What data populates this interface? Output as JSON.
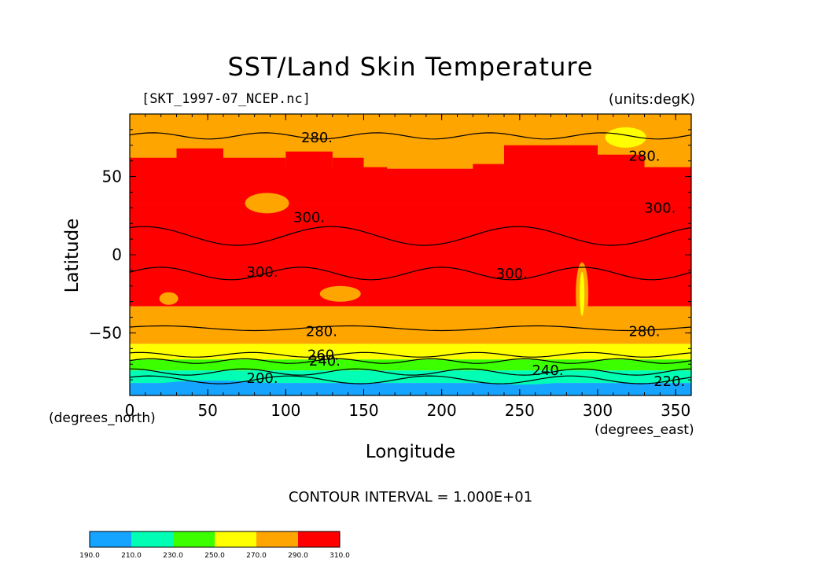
{
  "chart_data": {
    "type": "heatmap",
    "title": "SST/Land Skin Temperature",
    "subtitle_left": "[SKT_1997-07_NCEP.nc]",
    "subtitle_right": "(units:degK)",
    "xlabel": "Longitude",
    "ylabel": "Latitude",
    "x_unit": "(degrees_east)",
    "y_unit": "(degrees_north)",
    "xlim": [
      0,
      360
    ],
    "ylim": [
      -90,
      90
    ],
    "x_ticks": [
      0,
      50,
      100,
      150,
      200,
      250,
      300,
      350
    ],
    "y_ticks": [
      -50,
      0,
      50
    ],
    "contour_interval_text": "CONTOUR INTERVAL = 1.000E+01",
    "colorbar": {
      "levels": [
        "190.0",
        "210.0",
        "230.0",
        "250.0",
        "270.0",
        "290.0",
        "310.0"
      ],
      "colors": [
        "#15a4ff",
        "#00ffb5",
        "#3cff00",
        "#ffff00",
        "#ffa500",
        "#ff0000"
      ]
    },
    "contour_labels": [
      {
        "text": "280.",
        "lon": 120,
        "lat": 75
      },
      {
        "text": "280.",
        "lon": 330,
        "lat": 63
      },
      {
        "text": "300.",
        "lon": 340,
        "lat": 30
      },
      {
        "text": "300.",
        "lon": 115,
        "lat": 24
      },
      {
        "text": "300.",
        "lon": 85,
        "lat": -11
      },
      {
        "text": "300.",
        "lon": 245,
        "lat": -12
      },
      {
        "text": "280.",
        "lon": 123,
        "lat": -49
      },
      {
        "text": "280.",
        "lon": 330,
        "lat": -49
      },
      {
        "text": "260.",
        "lon": 124,
        "lat": -64
      },
      {
        "text": "240.",
        "lon": 125,
        "lat": -68
      },
      {
        "text": "240.",
        "lon": 268,
        "lat": -74
      },
      {
        "text": "200.",
        "lon": 85,
        "lat": -79
      },
      {
        "text": "220.",
        "lon": 346,
        "lat": -81
      }
    ]
  },
  "caption": {
    "colorbar_bands": "190-310 K"
  }
}
